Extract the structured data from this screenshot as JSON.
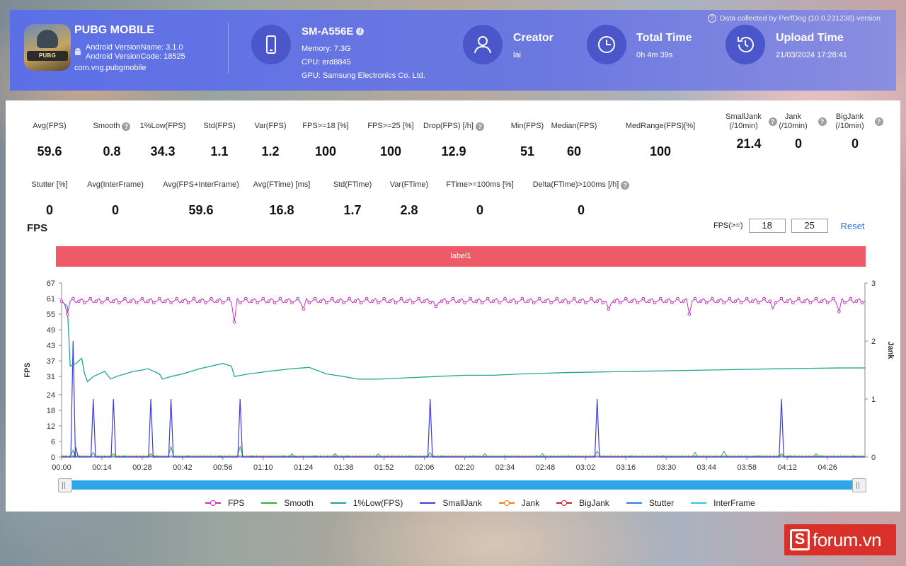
{
  "header": {
    "app_name": "PUBG MOBILE",
    "app_icon_text": "PUBG",
    "version_name": "Android VersionName: 3.1.0",
    "version_code": "Android VersionCode: 18525",
    "package": "com.vng.pubgmobile",
    "device": "SM-A556E",
    "memory": "Memory: 7.3G",
    "cpu": "CPU: erd8845",
    "gpu": "GPU: Samsung Electronics Co. Ltd.",
    "creator_title": "Creator",
    "creator_value": "lai",
    "total_time_title": "Total Time",
    "total_time_value": "0h 4m 39s",
    "upload_time_title": "Upload Time",
    "upload_time_value": "21/03/2024 17:28:41",
    "collected": "Data collected by PerfDog (10.0.231238) version"
  },
  "metrics_row1": [
    {
      "label": "Avg(FPS)",
      "value": "59.6",
      "help": false
    },
    {
      "label": "Smooth",
      "value": "0.8",
      "help": true
    },
    {
      "label": "1%Low(FPS)",
      "value": "34.3",
      "help": false
    },
    {
      "label": "Std(FPS)",
      "value": "1.1",
      "help": false
    },
    {
      "label": "Var(FPS)",
      "value": "1.2",
      "help": false
    },
    {
      "label": "FPS>=18 [%]",
      "value": "100",
      "help": false
    },
    {
      "label": "FPS>=25 [%]",
      "value": "100",
      "help": false
    },
    {
      "label": "Drop(FPS) [/h]",
      "value": "12.9",
      "help": true
    },
    {
      "label": "Min(FPS)",
      "value": "51",
      "help": false
    },
    {
      "label": "Median(FPS)",
      "value": "60",
      "help": false
    },
    {
      "label": "MedRange(FPS)[%]",
      "value": "100",
      "help": false
    },
    {
      "label": "SmallJank (/10min)",
      "value": "21.4",
      "help": true
    },
    {
      "label": "Jank (/10min)",
      "value": "0",
      "help": true
    },
    {
      "label": "BigJank (/10min)",
      "value": "0",
      "help": true
    }
  ],
  "metrics_row2": [
    {
      "label": "Stutter [%]",
      "value": "0",
      "help": false
    },
    {
      "label": "Avg(InterFrame)",
      "value": "0",
      "help": false
    },
    {
      "label": "Avg(FPS+InterFrame)",
      "value": "59.6",
      "help": false
    },
    {
      "label": "Avg(FTime) [ms]",
      "value": "16.8",
      "help": false
    },
    {
      "label": "Std(FTime)",
      "value": "1.7",
      "help": false
    },
    {
      "label": "Var(FTime)",
      "value": "2.8",
      "help": false
    },
    {
      "label": "FTime>=100ms [%]",
      "value": "0",
      "help": false
    },
    {
      "label": "Delta(FTime)>100ms [/h]",
      "value": "0",
      "help": true
    }
  ],
  "fps_section": {
    "title": "FPS",
    "threshold_label": "FPS(>=)",
    "threshold1": "18",
    "threshold2": "25",
    "reset_label": "Reset",
    "label_bar": "label1"
  },
  "chart_data": {
    "type": "line",
    "ylabel": "FPS",
    "y2label": "Jank",
    "ylim": [
      0,
      67
    ],
    "y2lim": [
      0,
      3
    ],
    "yticks": [
      0,
      6,
      12,
      18,
      24,
      31,
      37,
      43,
      49,
      55,
      61,
      67
    ],
    "y2ticks": [
      0,
      1,
      2,
      3
    ],
    "xlim_seconds": [
      0,
      279
    ],
    "xticks": [
      "00:00",
      "00:14",
      "00:28",
      "00:42",
      "00:56",
      "01:10",
      "01:24",
      "01:38",
      "01:52",
      "02:06",
      "02:20",
      "02:34",
      "02:48",
      "03:02",
      "03:16",
      "03:30",
      "03:44",
      "03:58",
      "04:12",
      "04:26"
    ],
    "grid": false,
    "legend_position": "bottom",
    "colors": {
      "FPS": "#c52fbf",
      "Smooth": "#2db52d",
      "1%Low(FPS)": "#1fa597",
      "SmallJank": "#3d3ddb",
      "Jank": "#f07a1a",
      "BigJank": "#d42020",
      "Stutter": "#2f7fe0",
      "InterFrame": "#2ec6e6"
    },
    "legend": [
      "FPS",
      "Smooth",
      "1%Low(FPS)",
      "SmallJank",
      "Jank",
      "BigJank",
      "Stutter",
      "InterFrame"
    ],
    "fps_baseline": 60,
    "fps_dips": [
      [
        1,
        59
      ],
      [
        2,
        55
      ],
      [
        60,
        52
      ],
      [
        84,
        57
      ],
      [
        130,
        58
      ],
      [
        190,
        57
      ],
      [
        218,
        55
      ],
      [
        247,
        57
      ],
      [
        270,
        56
      ]
    ],
    "low1pct": [
      [
        0,
        60
      ],
      [
        2,
        58
      ],
      [
        3,
        35
      ],
      [
        5,
        36
      ],
      [
        7,
        38
      ],
      [
        8,
        32
      ],
      [
        9,
        29
      ],
      [
        11,
        31
      ],
      [
        13,
        32
      ],
      [
        15,
        33
      ],
      [
        17,
        30
      ],
      [
        19,
        31
      ],
      [
        22,
        32
      ],
      [
        25,
        33
      ],
      [
        28,
        33.5
      ],
      [
        30,
        34
      ],
      [
        34,
        32
      ],
      [
        35,
        30
      ],
      [
        38,
        31
      ],
      [
        42,
        32
      ],
      [
        48,
        34
      ],
      [
        56,
        36
      ],
      [
        59,
        35
      ],
      [
        60,
        31
      ],
      [
        65,
        32
      ],
      [
        72,
        33
      ],
      [
        80,
        34
      ],
      [
        86,
        34.5
      ],
      [
        92,
        32
      ],
      [
        98,
        31
      ],
      [
        103,
        30
      ],
      [
        110,
        30
      ],
      [
        120,
        30.5
      ],
      [
        130,
        31
      ],
      [
        140,
        31.5
      ],
      [
        150,
        31.5
      ],
      [
        160,
        32
      ],
      [
        175,
        32.5
      ],
      [
        200,
        33
      ],
      [
        225,
        33.5
      ],
      [
        250,
        34
      ],
      [
        270,
        34.3
      ],
      [
        279,
        34.3
      ]
    ],
    "smalljank": [
      [
        1,
        0
      ],
      [
        4,
        2
      ],
      [
        5,
        0.15
      ],
      [
        11,
        1
      ],
      [
        18,
        1
      ],
      [
        31,
        1
      ],
      [
        38,
        1
      ],
      [
        62,
        1
      ],
      [
        128,
        1
      ],
      [
        186,
        1
      ],
      [
        250,
        1
      ]
    ],
    "smooth_peaks": [
      [
        4,
        6
      ],
      [
        11,
        4
      ],
      [
        18,
        3
      ],
      [
        31,
        3
      ],
      [
        38,
        9
      ],
      [
        62,
        9
      ],
      [
        128,
        4
      ],
      [
        186,
        5
      ],
      [
        230,
        5
      ],
      [
        250,
        3
      ],
      [
        80,
        3
      ],
      [
        95,
        3
      ],
      [
        110,
        3
      ],
      [
        147,
        3
      ],
      [
        167,
        3
      ],
      [
        220,
        4
      ],
      [
        262,
        3
      ]
    ]
  }
}
